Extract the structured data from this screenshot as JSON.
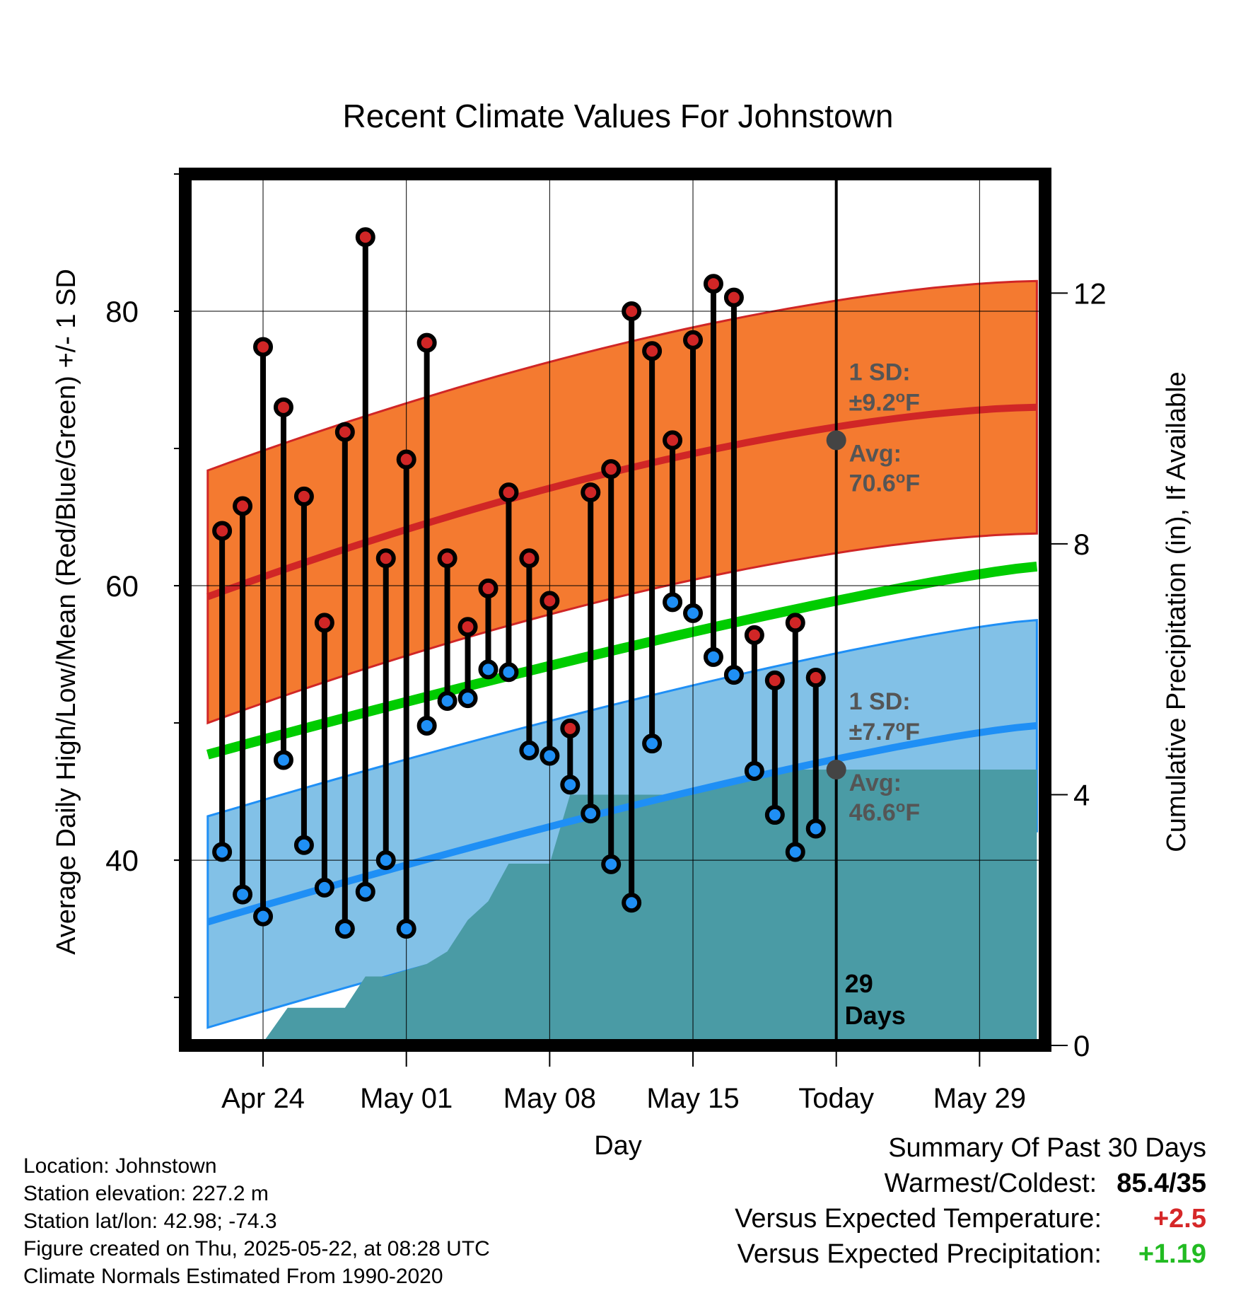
{
  "chart_data": {
    "type": "line",
    "title": "Recent Climate Values For Johnstown",
    "xlabel": "Day",
    "ylabel_left": "Average Daily High/Low/Mean (Red/Blue/Green) +/- 1 SD",
    "ylabel_right": "Cumulative Precipitation (in), If Available",
    "y_left_range": [
      26.5,
      90
    ],
    "y_left_ticks": [
      "40",
      "60",
      "80"
    ],
    "y_right_range": [
      0,
      13.9
    ],
    "y_right_ticks": [
      "0",
      "4",
      "8",
      "12"
    ],
    "x_range_days": [
      -3.8,
      38.2
    ],
    "x_ticks": [
      {
        "day": 0,
        "label": "Apr 24"
      },
      {
        "day": 7,
        "label": "May 01"
      },
      {
        "day": 14,
        "label": "May 08"
      },
      {
        "day": 21,
        "label": "May 15"
      },
      {
        "day": 28,
        "label": "Today"
      },
      {
        "day": 35,
        "label": "May 29"
      }
    ],
    "today_day": 28,
    "normals": {
      "x": [
        -2.7,
        37.8
      ],
      "high_avg": [
        59.2,
        73.0
      ],
      "high_sd": 9.2,
      "mean": [
        47.7,
        61.4
      ],
      "low_avg": [
        35.5,
        49.8
      ],
      "low_sd": 7.7
    },
    "daily": [
      {
        "day": -2,
        "high": 64.0,
        "low": 40.6
      },
      {
        "day": -1,
        "high": 65.8,
        "low": 37.5
      },
      {
        "day": 0,
        "high": 77.4,
        "low": 35.9
      },
      {
        "day": 1,
        "high": 73.0,
        "low": 47.3
      },
      {
        "day": 2,
        "high": 66.5,
        "low": 41.1
      },
      {
        "day": 3,
        "high": 57.3,
        "low": 38.0
      },
      {
        "day": 4,
        "high": 71.2,
        "low": 35.0
      },
      {
        "day": 5,
        "high": 85.4,
        "low": 37.7
      },
      {
        "day": 6,
        "high": 62.0,
        "low": 40.0
      },
      {
        "day": 7,
        "high": 69.2,
        "low": 35.0
      },
      {
        "day": 8,
        "high": 77.7,
        "low": 49.8
      },
      {
        "day": 9,
        "high": 62.0,
        "low": 51.6
      },
      {
        "day": 10,
        "high": 57.0,
        "low": 51.8
      },
      {
        "day": 11,
        "high": 59.8,
        "low": 53.9
      },
      {
        "day": 12,
        "high": 66.8,
        "low": 53.7
      },
      {
        "day": 13,
        "high": 62.0,
        "low": 48.0
      },
      {
        "day": 14,
        "high": 58.9,
        "low": 47.6
      },
      {
        "day": 15,
        "high": 49.6,
        "low": 45.5
      },
      {
        "day": 16,
        "high": 66.8,
        "low": 43.4
      },
      {
        "day": 17,
        "high": 68.5,
        "low": 39.7
      },
      {
        "day": 18,
        "high": 80.0,
        "low": 36.9
      },
      {
        "day": 19,
        "high": 77.1,
        "low": 48.5
      },
      {
        "day": 20,
        "high": 70.6,
        "low": 58.8
      },
      {
        "day": 21,
        "high": 77.9,
        "low": 58.0
      },
      {
        "day": 22,
        "high": 82.0,
        "low": 54.8
      },
      {
        "day": 23,
        "high": 81.0,
        "low": 53.5
      },
      {
        "day": 24,
        "high": 56.4,
        "low": 46.5
      },
      {
        "day": 25,
        "high": 53.1,
        "low": 43.3
      },
      {
        "day": 26,
        "high": 57.3,
        "low": 40.6
      },
      {
        "day": 27,
        "high": 53.3,
        "low": 42.3
      }
    ],
    "precip_cumulative": [
      {
        "day": -0.1,
        "value": 0
      },
      {
        "day": 1.2,
        "value": 0.6
      },
      {
        "day": 4.0,
        "value": 0.6
      },
      {
        "day": 5.0,
        "value": 1.1
      },
      {
        "day": 6.0,
        "value": 1.1
      },
      {
        "day": 7.0,
        "value": 1.2
      },
      {
        "day": 8.0,
        "value": 1.3
      },
      {
        "day": 9.0,
        "value": 1.5
      },
      {
        "day": 10.0,
        "value": 2.0
      },
      {
        "day": 11.0,
        "value": 2.3
      },
      {
        "day": 12.0,
        "value": 2.9
      },
      {
        "day": 13.0,
        "value": 2.9
      },
      {
        "day": 14.0,
        "value": 2.9
      },
      {
        "day": 15.0,
        "value": 4.0
      },
      {
        "day": 18.0,
        "value": 4.0
      },
      {
        "day": 21.0,
        "value": 4.0
      },
      {
        "day": 22.0,
        "value": 4.1
      },
      {
        "day": 23.0,
        "value": 4.2
      },
      {
        "day": 24.0,
        "value": 4.35
      },
      {
        "day": 26.0,
        "value": 4.4
      },
      {
        "day": 37.8,
        "value": 4.4
      }
    ],
    "annotations": {
      "high_sd_label": "1 SD:",
      "high_sd_value": "±9.2",
      "high_avg_label": "Avg:",
      "high_avg_value": "70.6",
      "low_sd_label": "1 SD:",
      "low_sd_value": "±7.7",
      "low_avg_label": "Avg:",
      "low_avg_value": "46.6",
      "unit_sup": "o",
      "unit_letter": "F",
      "days_count": "29",
      "days_word": "Days"
    },
    "colors": {
      "high_band": "#f47a30",
      "high_line": "#d02626",
      "low_band": "#82c1e7",
      "low_line": "#1f8ff5",
      "mean_line": "#00cc00",
      "precip_fill": "#4a9ba5",
      "marker_high": "#d02626",
      "marker_low": "#1f8ff5",
      "annotation": "#555555",
      "today_marker": "#444444"
    }
  },
  "station": {
    "location": "Location: Johnstown",
    "elevation": "Station elevation: 227.2 m",
    "latlon": "Station lat/lon: 42.98; -74.3",
    "created": "Figure created on Thu, 2025-05-22, at 08:28 UTC",
    "normals_note": "Climate Normals Estimated From 1990-2020"
  },
  "summary": {
    "title": "Summary Of Past 30 Days",
    "warmest_label": "Warmest/Coldest:",
    "warmest_value": "85.4/35",
    "temp_label": "Versus Expected Temperature:",
    "temp_value": "+2.5",
    "temp_color": "#d62728",
    "precip_label": "Versus Expected Precipitation:",
    "precip_value": "+1.19",
    "precip_color": "#22bb22"
  }
}
